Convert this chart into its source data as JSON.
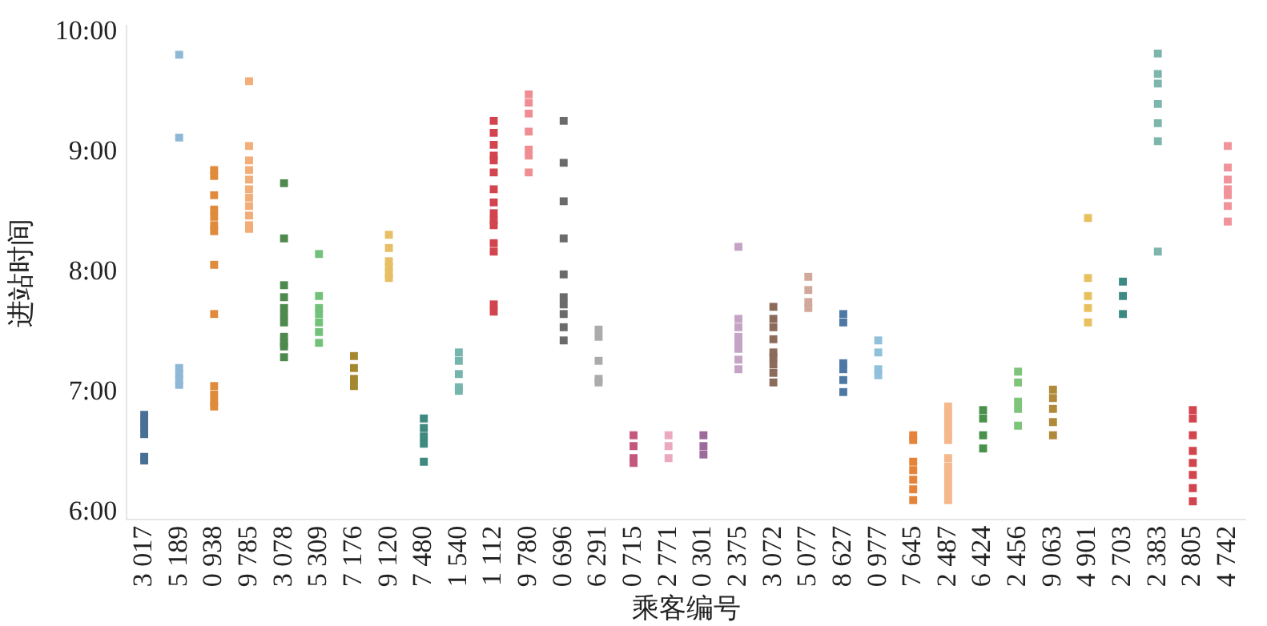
{
  "chart_data": {
    "type": "scatter",
    "xlabel": "乘客编号",
    "ylabel": "进站时间",
    "categories": [
      "3 017",
      "5 189",
      "0 938",
      "9 785",
      "3 078",
      "5 309",
      "7 176",
      "9 120",
      "7 480",
      "1 540",
      "1 112",
      "9 780",
      "0 696",
      "6 291",
      "0 715",
      "2 771",
      "0 301",
      "2 375",
      "3 072",
      "5 077",
      "8 627",
      "0 977",
      "7 645",
      "2 487",
      "6 424",
      "2 456",
      "9 063",
      "4 901",
      "2 703",
      "2 383",
      "2 805",
      "4 742"
    ],
    "ylim": [
      5.94,
      10.05
    ],
    "yticks": [
      {
        "value": 6,
        "label": "6:00"
      },
      {
        "value": 7,
        "label": "7:00"
      },
      {
        "value": 8,
        "label": "8:00"
      },
      {
        "value": 9,
        "label": "9:00"
      },
      {
        "value": 10,
        "label": "10:00"
      }
    ],
    "grid": false,
    "legend": false,
    "marker": "square",
    "series": [
      {
        "color": "#4a6f94",
        "x": [
          "3 017",
          "3 017",
          "3 017",
          "3 017",
          "3 017",
          "3 017"
        ],
        "values": [
          6.81,
          6.75,
          6.7,
          6.65,
          6.46,
          6.43
        ]
      },
      {
        "color": "#8fb8d6",
        "x": [
          "5 189",
          "5 189",
          "5 189",
          "5 189",
          "5 189",
          "5 189"
        ],
        "values": [
          9.81,
          9.12,
          7.2,
          7.15,
          7.1,
          7.06
        ]
      },
      {
        "color": "#e08a3c",
        "x": [
          "0 938",
          "0 938",
          "0 938",
          "0 938",
          "0 938",
          "0 938",
          "0 938",
          "0 938",
          "0 938",
          "0 938",
          "0 938",
          "0 938",
          "0 938"
        ],
        "values": [
          8.85,
          8.8,
          8.64,
          8.52,
          8.46,
          8.39,
          8.34,
          8.06,
          7.65,
          7.05,
          6.98,
          6.92,
          6.88
        ]
      },
      {
        "color": "#f2ad78",
        "x": [
          "9 785",
          "9 785",
          "9 785",
          "9 785",
          "9 785",
          "9 785",
          "9 785",
          "9 785",
          "9 785",
          "9 785",
          "9 785"
        ],
        "values": [
          9.59,
          9.05,
          8.93,
          8.85,
          8.77,
          8.69,
          8.62,
          8.55,
          8.47,
          8.39,
          8.36
        ]
      },
      {
        "color": "#4e8a4e",
        "x": [
          "3 078",
          "3 078",
          "3 078",
          "3 078",
          "3 078",
          "3 078",
          "3 078",
          "3 078",
          "3 078",
          "3 078",
          "3 078"
        ],
        "values": [
          8.74,
          8.28,
          7.89,
          7.79,
          7.7,
          7.64,
          7.58,
          7.46,
          7.41,
          7.38,
          7.29
        ]
      },
      {
        "color": "#72c17a",
        "x": [
          "5 309",
          "5 309",
          "5 309",
          "5 309",
          "5 309",
          "5 309",
          "5 309"
        ],
        "values": [
          8.15,
          7.8,
          7.7,
          7.65,
          7.58,
          7.5,
          7.41
        ]
      },
      {
        "color": "#a4872f",
        "x": [
          "7 176",
          "7 176",
          "7 176",
          "7 176"
        ],
        "values": [
          7.3,
          7.2,
          7.11,
          7.05
        ]
      },
      {
        "color": "#e6bf66",
        "x": [
          "9 120",
          "9 120",
          "9 120",
          "9 120",
          "9 120",
          "9 120"
        ],
        "values": [
          8.31,
          8.2,
          8.09,
          8.04,
          7.99,
          7.95
        ]
      },
      {
        "color": "#3f8a80",
        "x": [
          "7 480",
          "7 480",
          "7 480",
          "7 480",
          "7 480"
        ],
        "values": [
          6.78,
          6.7,
          6.63,
          6.57,
          6.42
        ]
      },
      {
        "color": "#76b4ae",
        "x": [
          "1 540",
          "1 540",
          "1 540",
          "1 540",
          "1 540"
        ],
        "values": [
          7.33,
          7.26,
          7.15,
          7.04,
          7.01
        ]
      },
      {
        "color": "#d2444e",
        "x": [
          "1 112",
          "1 112",
          "1 112",
          "1 112",
          "1 112",
          "1 112",
          "1 112",
          "1 112",
          "1 112",
          "1 112",
          "1 112",
          "1 112",
          "1 112",
          "1 112",
          "1 112"
        ],
        "values": [
          9.26,
          9.16,
          9.06,
          8.97,
          8.93,
          8.83,
          8.69,
          8.58,
          8.49,
          8.43,
          8.39,
          8.24,
          8.17,
          7.73,
          7.67
        ]
      },
      {
        "color": "#ef8d93",
        "x": [
          "9 780",
          "9 780",
          "9 780",
          "9 780",
          "9 780",
          "9 780",
          "9 780"
        ],
        "values": [
          9.48,
          9.41,
          9.32,
          9.17,
          9.02,
          8.97,
          8.83
        ]
      },
      {
        "color": "#6b6b6b",
        "x": [
          "0 696",
          "0 696",
          "0 696",
          "0 696",
          "0 696",
          "0 696",
          "0 696",
          "0 696",
          "0 696",
          "0 696"
        ],
        "values": [
          9.26,
          8.91,
          8.59,
          8.28,
          7.98,
          7.79,
          7.73,
          7.65,
          7.54,
          7.43
        ]
      },
      {
        "color": "#ababab",
        "x": [
          "6 291",
          "6 291",
          "6 291",
          "6 291",
          "6 291"
        ],
        "values": [
          7.52,
          7.46,
          7.26,
          7.11,
          7.08
        ]
      },
      {
        "color": "#c4587e",
        "x": [
          "0 715",
          "0 715",
          "0 715",
          "0 715"
        ],
        "values": [
          6.64,
          6.55,
          6.45,
          6.41
        ]
      },
      {
        "color": "#eba8c0",
        "x": [
          "2 771",
          "2 771",
          "2 771"
        ],
        "values": [
          6.64,
          6.55,
          6.45
        ]
      },
      {
        "color": "#9d6a9c",
        "x": [
          "0 301",
          "0 301",
          "0 301"
        ],
        "values": [
          6.64,
          6.55,
          6.48
        ]
      },
      {
        "color": "#c4a3c4",
        "x": [
          "2 375",
          "2 375",
          "2 375",
          "2 375",
          "2 375",
          "2 375",
          "2 375",
          "2 375"
        ],
        "values": [
          8.21,
          7.61,
          7.54,
          7.46,
          7.41,
          7.36,
          7.27,
          7.19
        ]
      },
      {
        "color": "#8c6b5b",
        "x": [
          "3 072",
          "3 072",
          "3 072",
          "3 072",
          "3 072",
          "3 072",
          "3 072",
          "3 072",
          "3 072"
        ],
        "values": [
          7.71,
          7.61,
          7.54,
          7.44,
          7.33,
          7.29,
          7.23,
          7.16,
          7.08
        ]
      },
      {
        "color": "#d2a89b",
        "x": [
          "5 077",
          "5 077",
          "5 077",
          "5 077"
        ],
        "values": [
          7.96,
          7.85,
          7.75,
          7.7
        ]
      },
      {
        "color": "#4d78a4",
        "x": [
          "8 627",
          "8 627",
          "8 627",
          "8 627",
          "8 627",
          "8 627"
        ],
        "values": [
          7.65,
          7.58,
          7.24,
          7.19,
          7.1,
          7.0
        ]
      },
      {
        "color": "#8fc1dc",
        "x": [
          "0 977",
          "0 977",
          "0 977",
          "0 977"
        ],
        "values": [
          7.43,
          7.33,
          7.19,
          7.14
        ]
      },
      {
        "color": "#e6833a",
        "x": [
          "7 645",
          "7 645",
          "7 645",
          "7 645",
          "7 645",
          "7 645",
          "7 645"
        ],
        "values": [
          6.64,
          6.6,
          6.42,
          6.35,
          6.27,
          6.19,
          6.1
        ]
      },
      {
        "color": "#f5b88c",
        "x": [
          "2 487",
          "2 487",
          "2 487",
          "2 487",
          "2 487",
          "2 487",
          "2 487",
          "2 487",
          "2 487",
          "2 487",
          "2 487",
          "2 487",
          "2 487"
        ],
        "values": [
          6.88,
          6.82,
          6.76,
          6.7,
          6.64,
          6.6,
          6.45,
          6.38,
          6.34,
          6.28,
          6.22,
          6.16,
          6.1
        ]
      },
      {
        "color": "#4a924c",
        "x": [
          "6 424",
          "6 424",
          "6 424",
          "6 424"
        ],
        "values": [
          6.85,
          6.78,
          6.64,
          6.53
        ]
      },
      {
        "color": "#7ec47a",
        "x": [
          "2 456",
          "2 456",
          "2 456",
          "2 456",
          "2 456"
        ],
        "values": [
          7.17,
          7.08,
          6.92,
          6.86,
          6.72
        ]
      },
      {
        "color": "#b08a3a",
        "x": [
          "9 063",
          "9 063",
          "9 063",
          "9 063",
          "9 063"
        ],
        "values": [
          7.02,
          6.95,
          6.86,
          6.75,
          6.64
        ]
      },
      {
        "color": "#e8c060",
        "x": [
          "4 901",
          "4 901",
          "4 901",
          "4 901",
          "4 901"
        ],
        "values": [
          8.45,
          7.95,
          7.8,
          7.7,
          7.58
        ]
      },
      {
        "color": "#3d8a85",
        "x": [
          "2 703",
          "2 703",
          "2 703"
        ],
        "values": [
          7.92,
          7.8,
          7.65
        ]
      },
      {
        "color": "#7eb5ad",
        "x": [
          "2 383",
          "2 383",
          "2 383",
          "2 383",
          "2 383",
          "2 383",
          "2 383"
        ],
        "values": [
          9.82,
          9.65,
          9.57,
          9.4,
          9.24,
          9.09,
          8.17
        ]
      },
      {
        "color": "#d2454e",
        "x": [
          "2 805",
          "2 805",
          "2 805",
          "2 805",
          "2 805",
          "2 805",
          "2 805",
          "2 805"
        ],
        "values": [
          6.85,
          6.78,
          6.64,
          6.51,
          6.41,
          6.31,
          6.2,
          6.09
        ]
      },
      {
        "color": "#f0939a",
        "x": [
          "4 742",
          "4 742",
          "4 742",
          "4 742",
          "4 742",
          "4 742",
          "4 742"
        ],
        "values": [
          9.05,
          8.87,
          8.77,
          8.69,
          8.64,
          8.55,
          8.42
        ]
      }
    ]
  }
}
